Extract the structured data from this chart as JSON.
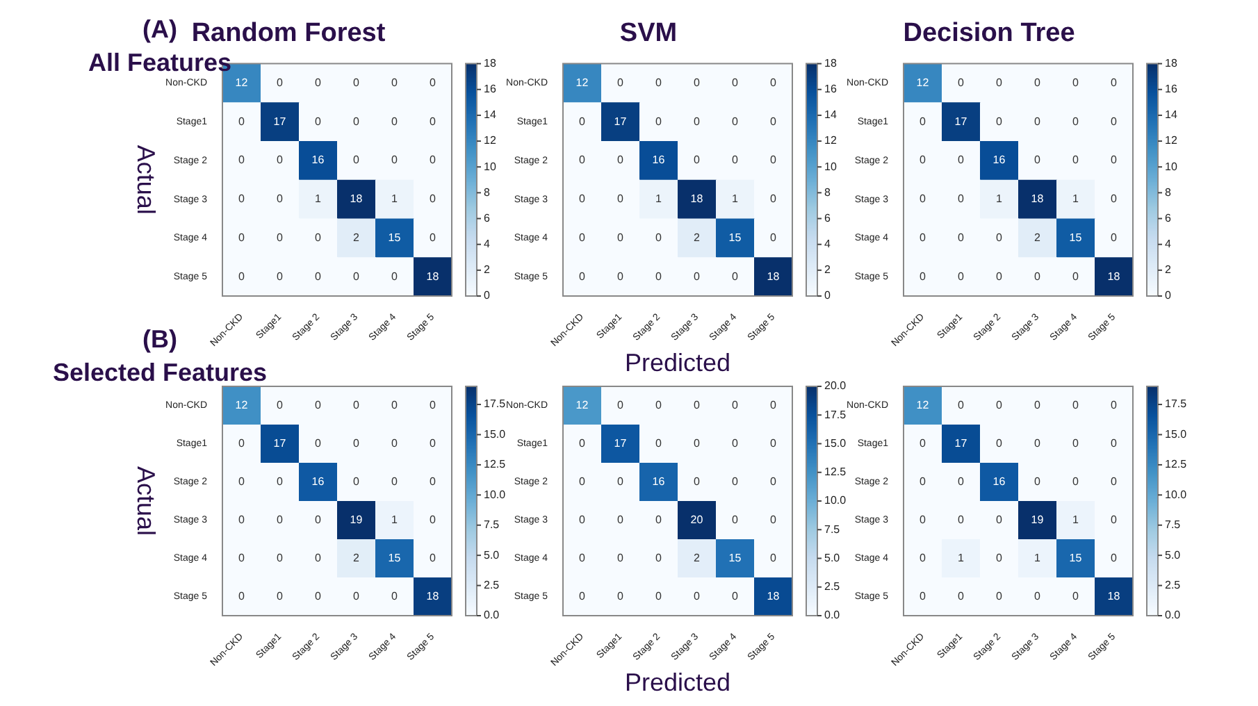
{
  "chart_data": [
    {
      "type": "heatmap",
      "title": "Random Forest",
      "ylabel": "Actual",
      "annotations": [
        "(A)",
        "All Features"
      ],
      "categories": [
        "Non-CKD",
        "Stage1",
        "Stage 2",
        "Stage 3",
        "Stage 4",
        "Stage 5"
      ],
      "y_categories": [
        "Non-CKD",
        "Stage1",
        "Stage 2",
        "Stage 3",
        "Stage 4",
        "Stage 5"
      ],
      "cells": [
        [
          12,
          0,
          0,
          0,
          0,
          0
        ],
        [
          0,
          17,
          0,
          0,
          0,
          0
        ],
        [
          0,
          0,
          16,
          0,
          0,
          0
        ],
        [
          0,
          0,
          1,
          18,
          1,
          0
        ],
        [
          0,
          0,
          0,
          2,
          15,
          0
        ],
        [
          0,
          0,
          0,
          0,
          0,
          18
        ]
      ],
      "clim": [
        0,
        18
      ],
      "cticks": [
        0,
        2,
        4,
        6,
        8,
        10,
        12,
        14,
        16,
        18
      ],
      "data_labels": true
    },
    {
      "type": "heatmap",
      "title": "SVM",
      "xlabel": "Predicted",
      "categories": [
        "Non-CKD",
        "Stage1",
        "Stage 2",
        "Stage 3",
        "Stage 4",
        "Stage 5"
      ],
      "y_categories": [
        "Non-CKD",
        "Stage1",
        "Stage 2",
        "Stage 3",
        "Stage 4",
        "Stage 5"
      ],
      "cells": [
        [
          12,
          0,
          0,
          0,
          0,
          0
        ],
        [
          0,
          17,
          0,
          0,
          0,
          0
        ],
        [
          0,
          0,
          16,
          0,
          0,
          0
        ],
        [
          0,
          0,
          1,
          18,
          1,
          0
        ],
        [
          0,
          0,
          0,
          2,
          15,
          0
        ],
        [
          0,
          0,
          0,
          0,
          0,
          18
        ]
      ],
      "clim": [
        0,
        18
      ],
      "cticks": [
        0,
        2,
        4,
        6,
        8,
        10,
        12,
        14,
        16,
        18
      ],
      "data_labels": true
    },
    {
      "type": "heatmap",
      "title": "Decision Tree",
      "categories": [
        "Non-CKD",
        "Stage1",
        "Stage 2",
        "Stage 3",
        "Stage 4",
        "Stage 5"
      ],
      "y_categories": [
        "Non-CKD",
        "Stage1",
        "Stage 2",
        "Stage 3",
        "Stage 4",
        "Stage 5"
      ],
      "cells": [
        [
          12,
          0,
          0,
          0,
          0,
          0
        ],
        [
          0,
          17,
          0,
          0,
          0,
          0
        ],
        [
          0,
          0,
          16,
          0,
          0,
          0
        ],
        [
          0,
          0,
          1,
          18,
          1,
          0
        ],
        [
          0,
          0,
          0,
          2,
          15,
          0
        ],
        [
          0,
          0,
          0,
          0,
          0,
          18
        ]
      ],
      "clim": [
        0,
        18
      ],
      "cticks": [
        0,
        2,
        4,
        6,
        8,
        10,
        12,
        14,
        16,
        18
      ],
      "data_labels": true
    },
    {
      "type": "heatmap",
      "ylabel": "Actual",
      "annotations": [
        "(B)",
        "Selected Features"
      ],
      "categories": [
        "Non-CKD",
        "Stage1",
        "Stage 2",
        "Stage 3",
        "Stage 4",
        "Stage 5"
      ],
      "y_categories": [
        "Non-CKD",
        "Stage1",
        "Stage 2",
        "Stage 3",
        "Stage 4",
        "Stage 5"
      ],
      "cells": [
        [
          12,
          0,
          0,
          0,
          0,
          0
        ],
        [
          0,
          17,
          0,
          0,
          0,
          0
        ],
        [
          0,
          0,
          16,
          0,
          0,
          0
        ],
        [
          0,
          0,
          0,
          19,
          1,
          0
        ],
        [
          0,
          0,
          0,
          2,
          15,
          0
        ],
        [
          0,
          0,
          0,
          0,
          0,
          18
        ]
      ],
      "clim": [
        0,
        19
      ],
      "cticks": [
        {
          "value": 0,
          "label": "0.0"
        },
        {
          "value": 2.5,
          "label": "2.5"
        },
        {
          "value": 5,
          "label": "5.0"
        },
        {
          "value": 7.5,
          "label": "7.5"
        },
        {
          "value": 10,
          "label": "10.0"
        },
        {
          "value": 12.5,
          "label": "12.5"
        },
        {
          "value": 15,
          "label": "15.0"
        },
        {
          "value": 17.5,
          "label": "17.5"
        }
      ],
      "data_labels": true
    },
    {
      "type": "heatmap",
      "xlabel": "Predicted",
      "categories": [
        "Non-CKD",
        "Stage1",
        "Stage 2",
        "Stage 3",
        "Stage 4",
        "Stage 5"
      ],
      "y_categories": [
        "Non-CKD",
        "Stage1",
        "Stage 2",
        "Stage 3",
        "Stage 4",
        "Stage 5"
      ],
      "cells": [
        [
          12,
          0,
          0,
          0,
          0,
          0
        ],
        [
          0,
          17,
          0,
          0,
          0,
          0
        ],
        [
          0,
          0,
          16,
          0,
          0,
          0
        ],
        [
          0,
          0,
          0,
          20,
          0,
          0
        ],
        [
          0,
          0,
          0,
          2,
          15,
          0
        ],
        [
          0,
          0,
          0,
          0,
          0,
          18
        ]
      ],
      "clim": [
        0,
        20
      ],
      "cticks": [
        {
          "value": 0,
          "label": "0.0"
        },
        {
          "value": 2.5,
          "label": "2.5"
        },
        {
          "value": 5,
          "label": "5.0"
        },
        {
          "value": 7.5,
          "label": "7.5"
        },
        {
          "value": 10,
          "label": "10.0"
        },
        {
          "value": 12.5,
          "label": "12.5"
        },
        {
          "value": 15,
          "label": "15.0"
        },
        {
          "value": 17.5,
          "label": "17.5"
        },
        {
          "value": 20,
          "label": "20.0"
        }
      ],
      "data_labels": true
    },
    {
      "type": "heatmap",
      "categories": [
        "Non-CKD",
        "Stage1",
        "Stage 2",
        "Stage 3",
        "Stage 4",
        "Stage 5"
      ],
      "y_categories": [
        "Non-CKD",
        "Stage1",
        "Stage 2",
        "Stage 3",
        "Stage 4",
        "Stage 5"
      ],
      "cells": [
        [
          12,
          0,
          0,
          0,
          0,
          0
        ],
        [
          0,
          17,
          0,
          0,
          0,
          0
        ],
        [
          0,
          0,
          16,
          0,
          0,
          0
        ],
        [
          0,
          0,
          0,
          19,
          1,
          0
        ],
        [
          0,
          1,
          0,
          1,
          15,
          0
        ],
        [
          0,
          0,
          0,
          0,
          0,
          18
        ]
      ],
      "clim": [
        0,
        19
      ],
      "cticks": [
        {
          "value": 0,
          "label": "0.0"
        },
        {
          "value": 2.5,
          "label": "2.5"
        },
        {
          "value": 5,
          "label": "5.0"
        },
        {
          "value": 7.5,
          "label": "7.5"
        },
        {
          "value": 10,
          "label": "10.0"
        },
        {
          "value": 12.5,
          "label": "12.5"
        },
        {
          "value": 15,
          "label": "15.0"
        },
        {
          "value": 17.5,
          "label": "17.5"
        }
      ],
      "data_labels": true
    }
  ]
}
